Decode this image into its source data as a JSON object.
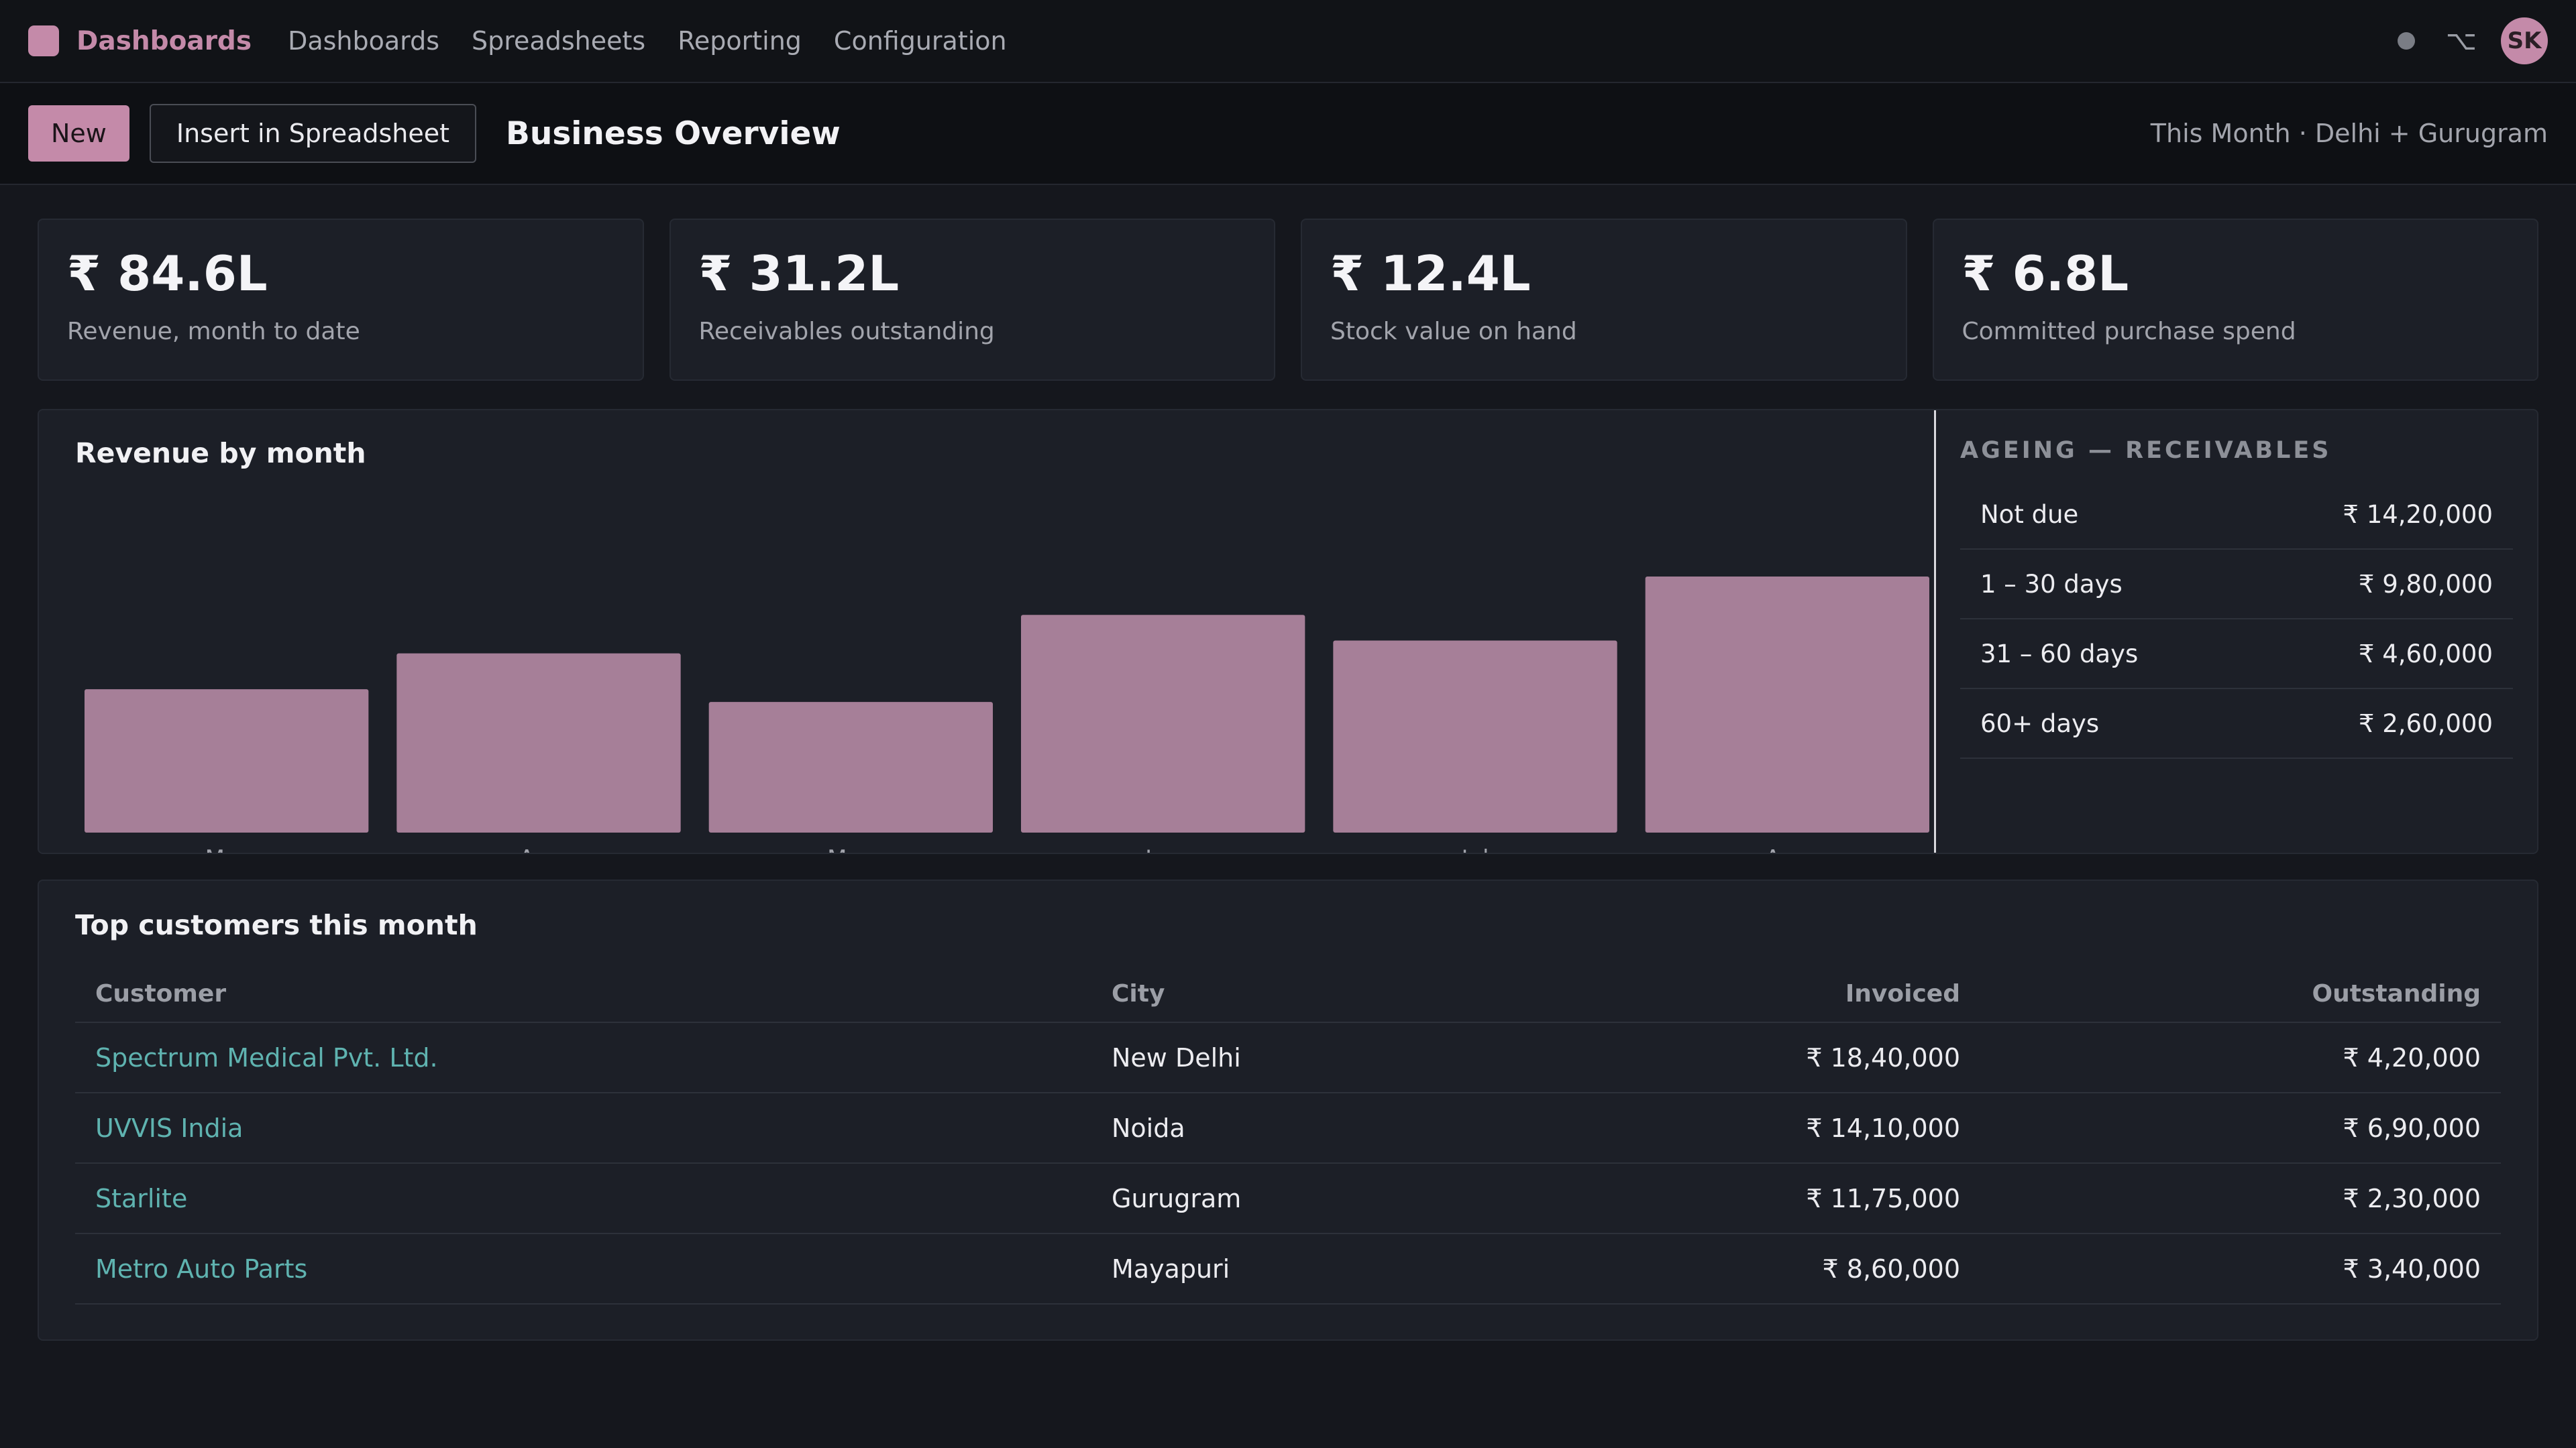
{
  "app": {
    "name": "Dashboards",
    "logo_icon": "app-logo-icon"
  },
  "nav": [
    {
      "label": "Dashboards"
    },
    {
      "label": "Spreadsheets"
    },
    {
      "label": "Reporting"
    },
    {
      "label": "Configuration"
    }
  ],
  "user": {
    "initials": "SK"
  },
  "toolbar": {
    "new_label": "New",
    "insert_label": "Insert in Spreadsheet",
    "title": "Business Overview",
    "filter": "This Month · Delhi + Gurugram"
  },
  "kpis": [
    {
      "value": "₹ 84.6L",
      "label": "Revenue, month to date"
    },
    {
      "value": "₹ 31.2L",
      "label": "Receivables outstanding"
    },
    {
      "value": "₹ 12.4L",
      "label": "Stock value on hand"
    },
    {
      "value": "₹ 6.8L",
      "label": "Committed purchase spend"
    }
  ],
  "chart_data": {
    "type": "bar",
    "title": "Revenue by month",
    "categories": [
      "Mar",
      "Apr",
      "May",
      "Jun",
      "Jul",
      "Aug"
    ],
    "values": [
      56,
      70,
      51,
      85,
      75,
      100
    ],
    "ylim": [
      0,
      100
    ],
    "xlabel": "",
    "ylabel": "",
    "grid": false,
    "bar_color": "#a67f98"
  },
  "ageing": {
    "title": "AGEING — RECEIVABLES",
    "rows": [
      {
        "label": "Not due",
        "value": "₹ 14,20,000"
      },
      {
        "label": "1 – 30 days",
        "value": "₹ 9,80,000"
      },
      {
        "label": "31 – 60 days",
        "value": "₹ 4,60,000"
      },
      {
        "label": "60+ days",
        "value": "₹ 2,60,000"
      }
    ]
  },
  "customers": {
    "title": "Top customers this month",
    "headers": {
      "customer": "Customer",
      "city": "City",
      "invoiced": "Invoiced",
      "outstanding": "Outstanding"
    },
    "rows": [
      {
        "customer": "Spectrum Medical Pvt. Ltd.",
        "city": "New Delhi",
        "invoiced": "₹ 18,40,000",
        "outstanding": "₹ 4,20,000"
      },
      {
        "customer": "UVVIS India",
        "city": "Noida",
        "invoiced": "₹ 14,10,000",
        "outstanding": "₹ 6,90,000"
      },
      {
        "customer": "Starlite",
        "city": "Gurugram",
        "invoiced": "₹ 11,75,000",
        "outstanding": "₹ 2,30,000"
      },
      {
        "customer": "Metro Auto Parts",
        "city": "Mayapuri",
        "invoiced": "₹ 8,60,000",
        "outstanding": "₹ 3,40,000"
      }
    ]
  },
  "colors": {
    "accent": "#c48aa9",
    "link": "#5fb3b0",
    "background": "#15171d",
    "panel": "#1c1f27"
  }
}
